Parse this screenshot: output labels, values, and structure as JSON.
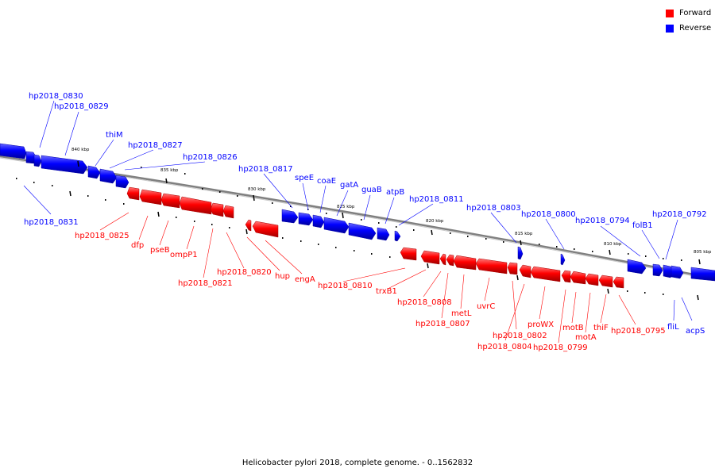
{
  "caption": "Helicobacter pylori 2018, complete genome. - 0..1562832",
  "legend": [
    {
      "label": "Forward",
      "color": "#ff0000"
    },
    {
      "label": "Reverse",
      "color": "#0000ff"
    }
  ],
  "colors": {
    "forward": "#ff0000",
    "reverse": "#0000ff",
    "backbone": "#808080"
  },
  "scale_labels": [
    "840 kbp",
    "835 kbp",
    "830 kbp",
    "825 kbp",
    "820 kbp",
    "815 kbp",
    "810 kbp",
    "805 kbp"
  ],
  "genes": {
    "reverse": [
      "hp2018_0830",
      "hp2018_0829",
      "thiM",
      "hp2018_0827",
      "hp2018_0826",
      "hp2018_0831",
      "hp2018_0817",
      "speE",
      "coaE",
      "gatA",
      "guaB",
      "atpB",
      "hp2018_0811",
      "hp2018_0803",
      "hp2018_0800",
      "hp2018_0794",
      "folB1",
      "hp2018_0792",
      "fliL",
      "acpS"
    ],
    "forward": [
      "hp2018_0825",
      "dfp",
      "pseB",
      "ompP1",
      "hp2018_0821",
      "hp2018_0820",
      "hup",
      "engA",
      "hp2018_0810",
      "trxB1",
      "hp2018_0808",
      "hp2018_0807",
      "metL",
      "uvrC",
      "hp2018_0802",
      "hp2018_0804",
      "proWX",
      "hp2018_0799",
      "motB",
      "motA",
      "thiF",
      "hp2018_0795"
    ]
  }
}
